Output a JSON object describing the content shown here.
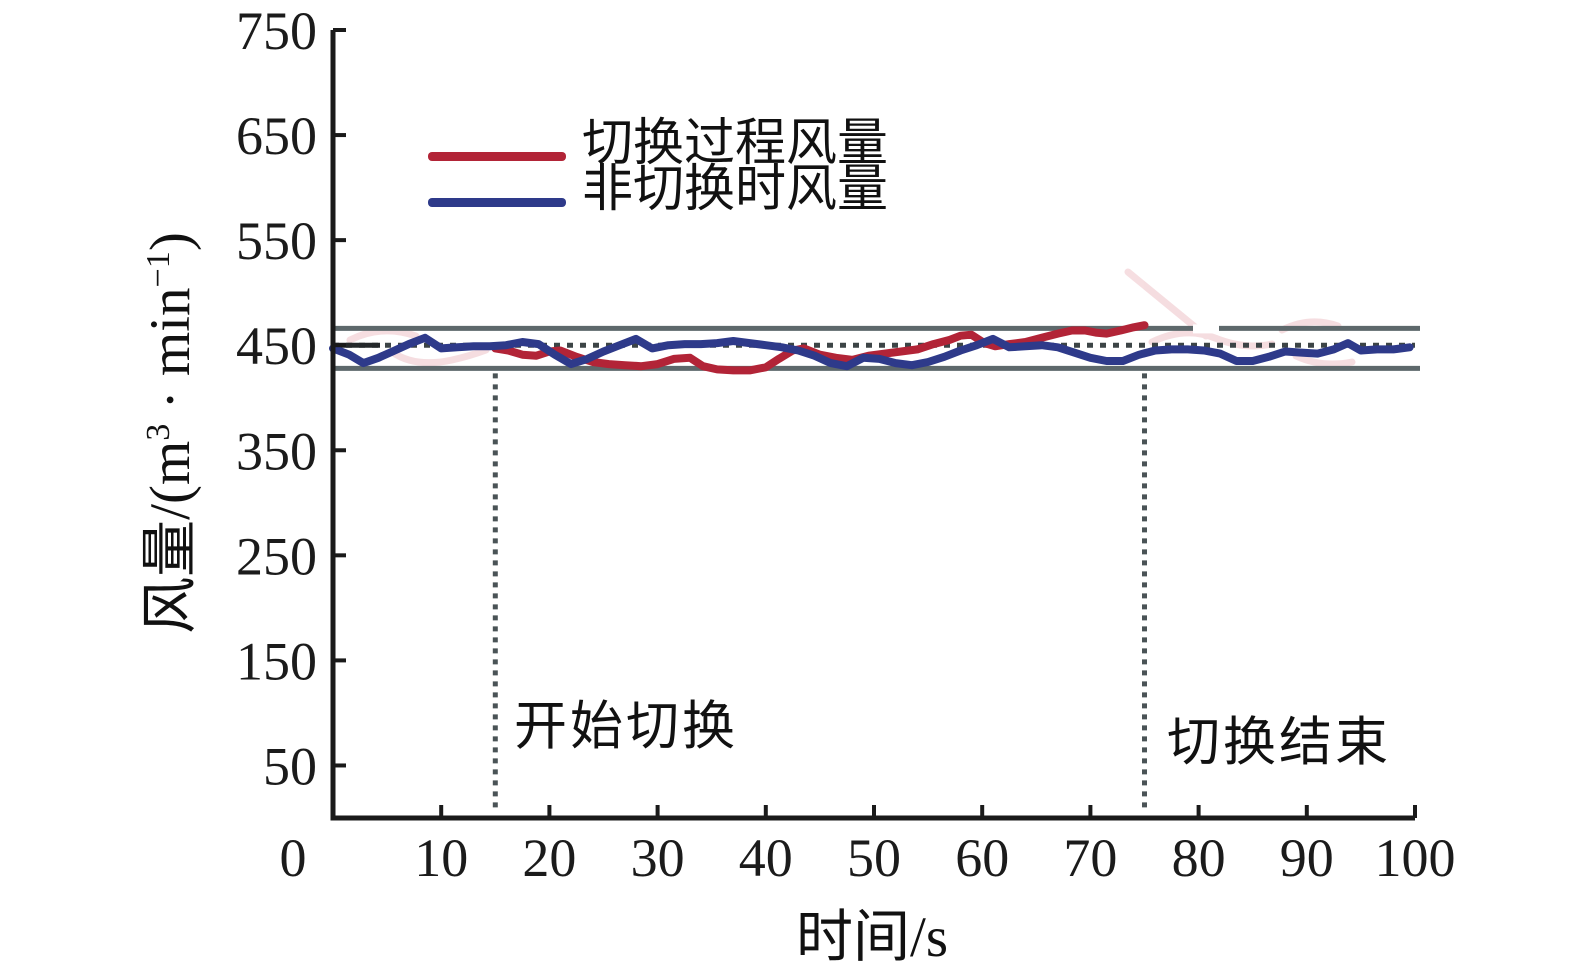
{
  "axes": {
    "x_title": "时间/s",
    "y_title": {
      "pre": "风量/(m",
      "sup1": "3",
      "mid": " · min",
      "sup2": "−1",
      "post": ")"
    }
  },
  "chart_data": {
    "type": "line",
    "title": "",
    "xlabel": "时间/s",
    "ylabel": "风量/(m³·min⁻¹)",
    "xlim": [
      0,
      100
    ],
    "ylim": [
      0,
      750
    ],
    "x_ticks": [
      0,
      10,
      20,
      30,
      40,
      50,
      60,
      70,
      80,
      90,
      100
    ],
    "y_ticks": [
      50,
      150,
      250,
      350,
      450,
      550,
      650,
      750
    ],
    "grid": false,
    "legend_position": "upper-left-inside",
    "series": [
      {
        "name": "切换过程风量",
        "color": "#b22437",
        "points": [
          [
            15,
            447
          ],
          [
            16.2,
            445
          ],
          [
            17.5,
            441
          ],
          [
            18.8,
            440
          ],
          [
            20,
            444
          ],
          [
            21,
            445
          ],
          [
            22.5,
            439
          ],
          [
            24,
            434
          ],
          [
            25.5,
            432
          ],
          [
            27,
            431
          ],
          [
            28.5,
            430
          ],
          [
            30,
            432
          ],
          [
            31.5,
            437
          ],
          [
            33,
            438
          ],
          [
            34.2,
            430
          ],
          [
            35.5,
            427
          ],
          [
            37,
            426
          ],
          [
            38.5,
            426
          ],
          [
            40,
            429
          ],
          [
            41.2,
            437
          ],
          [
            42.5,
            445
          ],
          [
            43.5,
            447
          ],
          [
            45,
            441
          ],
          [
            46.5,
            438
          ],
          [
            48,
            436
          ],
          [
            49.5,
            440
          ],
          [
            51,
            442
          ],
          [
            52.5,
            444
          ],
          [
            54,
            446
          ],
          [
            55.5,
            451
          ],
          [
            57,
            455
          ],
          [
            58,
            459
          ],
          [
            59,
            460
          ],
          [
            60.2,
            452
          ],
          [
            61.2,
            449
          ],
          [
            62.5,
            451
          ],
          [
            64,
            453
          ],
          [
            65.5,
            457
          ],
          [
            67,
            461
          ],
          [
            68.3,
            464
          ],
          [
            69.5,
            464
          ],
          [
            70.5,
            462
          ],
          [
            71.5,
            461
          ],
          [
            72.8,
            464
          ],
          [
            74,
            467
          ],
          [
            75,
            469
          ]
        ]
      },
      {
        "name": "非切换时风量",
        "color": "#2e3a8a",
        "points": [
          [
            0,
            447
          ],
          [
            1.5,
            441
          ],
          [
            2.8,
            433
          ],
          [
            4.2,
            438
          ],
          [
            5.5,
            444
          ],
          [
            7,
            451
          ],
          [
            8.5,
            457
          ],
          [
            10,
            447
          ],
          [
            11.5,
            448
          ],
          [
            13,
            449
          ],
          [
            14.5,
            449
          ],
          [
            16,
            450
          ],
          [
            17.5,
            453
          ],
          [
            19,
            451
          ],
          [
            20.5,
            441
          ],
          [
            22,
            432
          ],
          [
            23.5,
            437
          ],
          [
            25,
            444
          ],
          [
            26.5,
            450
          ],
          [
            28,
            456
          ],
          [
            29.5,
            447
          ],
          [
            31,
            450
          ],
          [
            32.5,
            451
          ],
          [
            34,
            451
          ],
          [
            35.5,
            452
          ],
          [
            37,
            454
          ],
          [
            38.5,
            452
          ],
          [
            40,
            450
          ],
          [
            41.5,
            448
          ],
          [
            43,
            445
          ],
          [
            44.5,
            440
          ],
          [
            46,
            433
          ],
          [
            47.5,
            430
          ],
          [
            49,
            438
          ],
          [
            50.5,
            437
          ],
          [
            52,
            433
          ],
          [
            53.5,
            431
          ],
          [
            55,
            434
          ],
          [
            56.5,
            439
          ],
          [
            58,
            445
          ],
          [
            59.5,
            450
          ],
          [
            61,
            456
          ],
          [
            62.5,
            448
          ],
          [
            64,
            449
          ],
          [
            65.5,
            450
          ],
          [
            67,
            448
          ],
          [
            68.5,
            443
          ],
          [
            70,
            438
          ],
          [
            71.5,
            435
          ],
          [
            73,
            435
          ],
          [
            74.5,
            441
          ],
          [
            76,
            445
          ],
          [
            77.5,
            446
          ],
          [
            79,
            446
          ],
          [
            80.5,
            445
          ],
          [
            82,
            442
          ],
          [
            83.5,
            435
          ],
          [
            85,
            435
          ],
          [
            86.5,
            439
          ],
          [
            88,
            444
          ],
          [
            89.5,
            443
          ],
          [
            91,
            442
          ],
          [
            92.5,
            446
          ],
          [
            93.8,
            452
          ],
          [
            95,
            445
          ],
          [
            96.5,
            446
          ],
          [
            98,
            446
          ],
          [
            99.5,
            448
          ]
        ]
      }
    ],
    "reference_lines": {
      "upper_limit": 466,
      "lower_limit": 428,
      "setpoint": 450,
      "solid_color": "#5d686b",
      "dashed_color": "#3c4446"
    },
    "annotations": [
      {
        "t": 15,
        "label": "开始切换"
      },
      {
        "t": 75,
        "label": "切换结束"
      }
    ]
  }
}
